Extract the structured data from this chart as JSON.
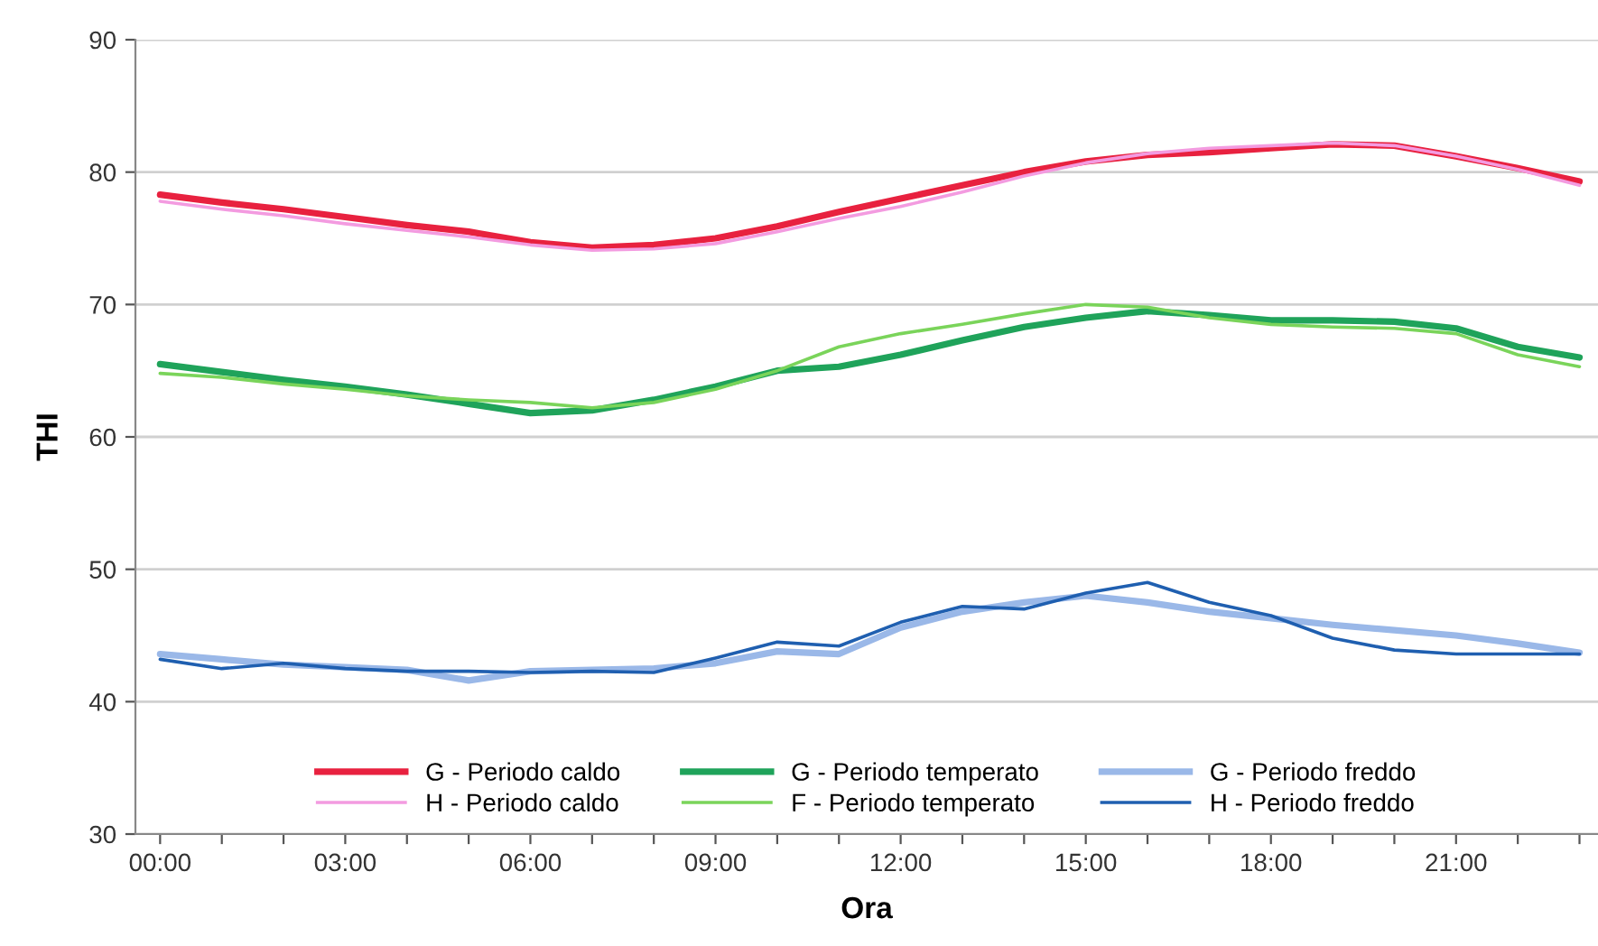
{
  "chart_data": {
    "type": "line",
    "xlabel": "Ora",
    "ylabel": "THI",
    "x": [
      0,
      1,
      2,
      3,
      4,
      5,
      6,
      7,
      8,
      9,
      10,
      11,
      12,
      13,
      14,
      15,
      16,
      17,
      18,
      19,
      20,
      21,
      22,
      23
    ],
    "xlim": [
      -0.4,
      23.3
    ],
    "xticks": [
      {
        "value": 0,
        "label": "00:00"
      },
      {
        "value": 1,
        "label": null
      },
      {
        "value": 2,
        "label": null
      },
      {
        "value": 3,
        "label": "03:00"
      },
      {
        "value": 4,
        "label": null
      },
      {
        "value": 5,
        "label": null
      },
      {
        "value": 6,
        "label": "06:00"
      },
      {
        "value": 7,
        "label": null
      },
      {
        "value": 8,
        "label": null
      },
      {
        "value": 9,
        "label": "09:00"
      },
      {
        "value": 10,
        "label": null
      },
      {
        "value": 11,
        "label": null
      },
      {
        "value": 12,
        "label": "12:00"
      },
      {
        "value": 13,
        "label": null
      },
      {
        "value": 14,
        "label": null
      },
      {
        "value": 15,
        "label": "15:00"
      },
      {
        "value": 16,
        "label": null
      },
      {
        "value": 17,
        "label": null
      },
      {
        "value": 18,
        "label": "18:00"
      },
      {
        "value": 19,
        "label": null
      },
      {
        "value": 20,
        "label": null
      },
      {
        "value": 21,
        "label": "21:00"
      },
      {
        "value": 22,
        "label": null
      },
      {
        "value": 23,
        "label": null
      }
    ],
    "ylim": [
      30,
      90
    ],
    "yticks": [
      30,
      40,
      50,
      60,
      70,
      80,
      90
    ],
    "grid": "y",
    "legend": "bottom",
    "marker": "none",
    "line_style": "solid",
    "series": [
      {
        "name": "G - Periodo caldo",
        "color": "#e8213f",
        "values": [
          78.3,
          77.7,
          77.2,
          76.6,
          76.0,
          75.5,
          74.7,
          74.3,
          74.5,
          75.0,
          75.9,
          77.0,
          78.0,
          79.0,
          80.0,
          80.8,
          81.3,
          81.5,
          81.8,
          82.1,
          82.0,
          81.2,
          80.3,
          79.3
        ]
      },
      {
        "name": "H - Periodo caldo",
        "color": "#f39be0",
        "values": [
          77.8,
          77.2,
          76.7,
          76.1,
          75.6,
          75.1,
          74.5,
          74.1,
          74.2,
          74.6,
          75.5,
          76.5,
          77.4,
          78.5,
          79.7,
          80.7,
          81.4,
          81.8,
          82.0,
          82.2,
          82.0,
          81.2,
          80.2,
          79.0
        ]
      },
      {
        "name": "G - Periodo temperato",
        "color": "#1fa35a",
        "values": [
          65.5,
          64.9,
          64.3,
          63.8,
          63.2,
          62.5,
          61.8,
          62.0,
          62.8,
          63.8,
          65.0,
          65.3,
          66.2,
          67.3,
          68.3,
          69.0,
          69.5,
          69.2,
          68.8,
          68.8,
          68.7,
          68.2,
          66.8,
          66.0
        ]
      },
      {
        "name": "F - Periodo temperato",
        "color": "#7ad45a",
        "values": [
          64.8,
          64.5,
          64.0,
          63.6,
          63.1,
          62.8,
          62.6,
          62.2,
          62.6,
          63.6,
          65.0,
          66.8,
          67.8,
          68.5,
          69.3,
          70.0,
          69.8,
          69.0,
          68.5,
          68.3,
          68.2,
          67.8,
          66.2,
          65.3
        ]
      },
      {
        "name": "G - Periodo freddo",
        "color": "#9ab8e8",
        "values": [
          43.6,
          43.2,
          42.8,
          42.6,
          42.4,
          41.6,
          42.3,
          42.4,
          42.5,
          42.9,
          43.8,
          43.6,
          45.6,
          46.8,
          47.5,
          48.0,
          47.5,
          46.8,
          46.3,
          45.8,
          45.4,
          45.0,
          44.4,
          43.7
        ]
      },
      {
        "name": "H - Periodo freddo",
        "color": "#1f5fb0",
        "values": [
          43.2,
          42.5,
          42.9,
          42.5,
          42.3,
          42.3,
          42.2,
          42.3,
          42.2,
          43.3,
          44.5,
          44.2,
          46.0,
          47.2,
          47.0,
          48.2,
          49.0,
          47.5,
          46.5,
          44.8,
          43.9,
          43.6,
          43.6,
          43.6
        ]
      }
    ]
  }
}
